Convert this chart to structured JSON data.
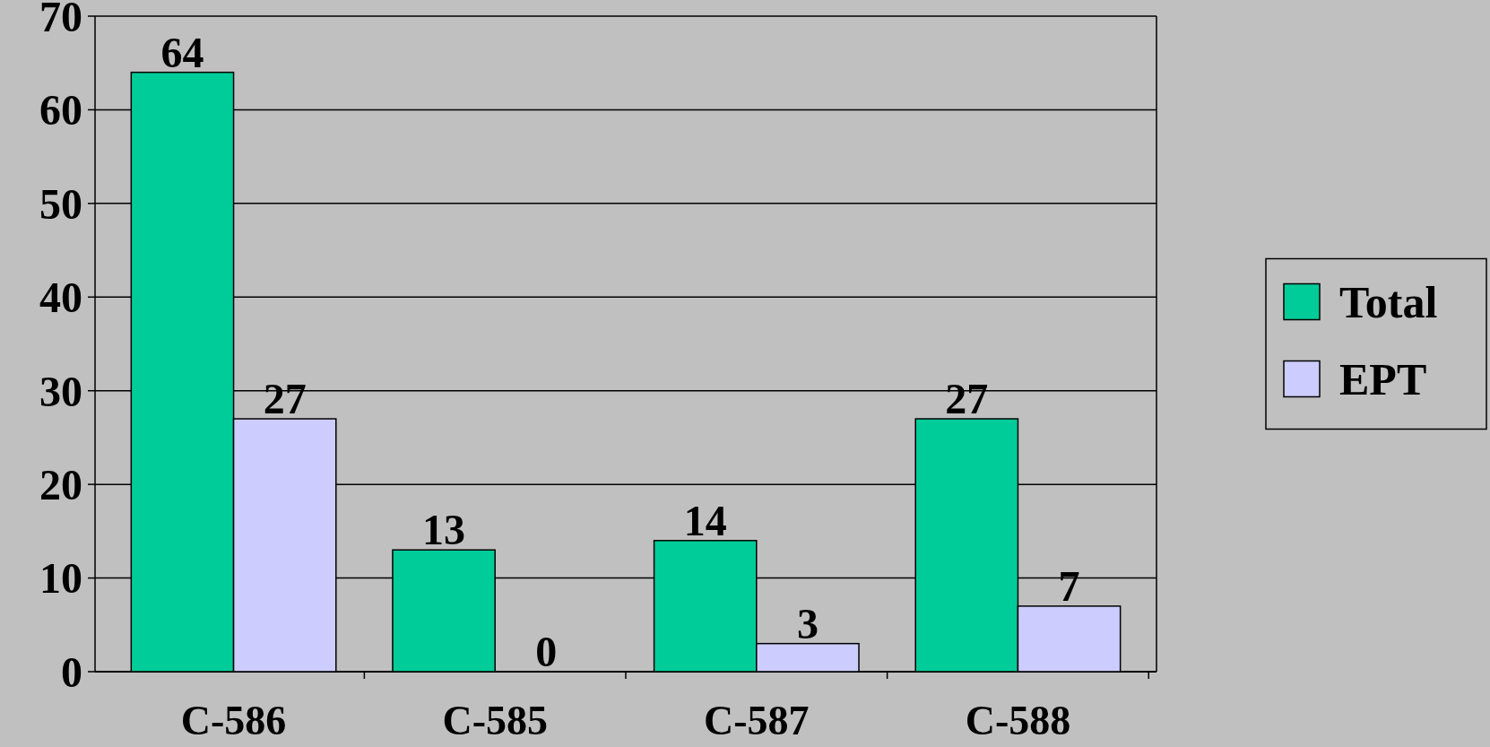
{
  "chart_data": {
    "type": "bar",
    "categories": [
      "C-586",
      "C-585",
      "C-587",
      "C-588"
    ],
    "series": [
      {
        "name": "Total",
        "color": "#00cc99",
        "values": [
          64,
          13,
          14,
          27
        ]
      },
      {
        "name": "EPT",
        "color": "#ccccff",
        "values": [
          27,
          0,
          3,
          7
        ]
      }
    ],
    "ylim": [
      0,
      70
    ],
    "yticks": [
      0,
      10,
      20,
      30,
      40,
      50,
      60,
      70
    ],
    "grid": "y",
    "legend": "right",
    "data_labels": true
  }
}
